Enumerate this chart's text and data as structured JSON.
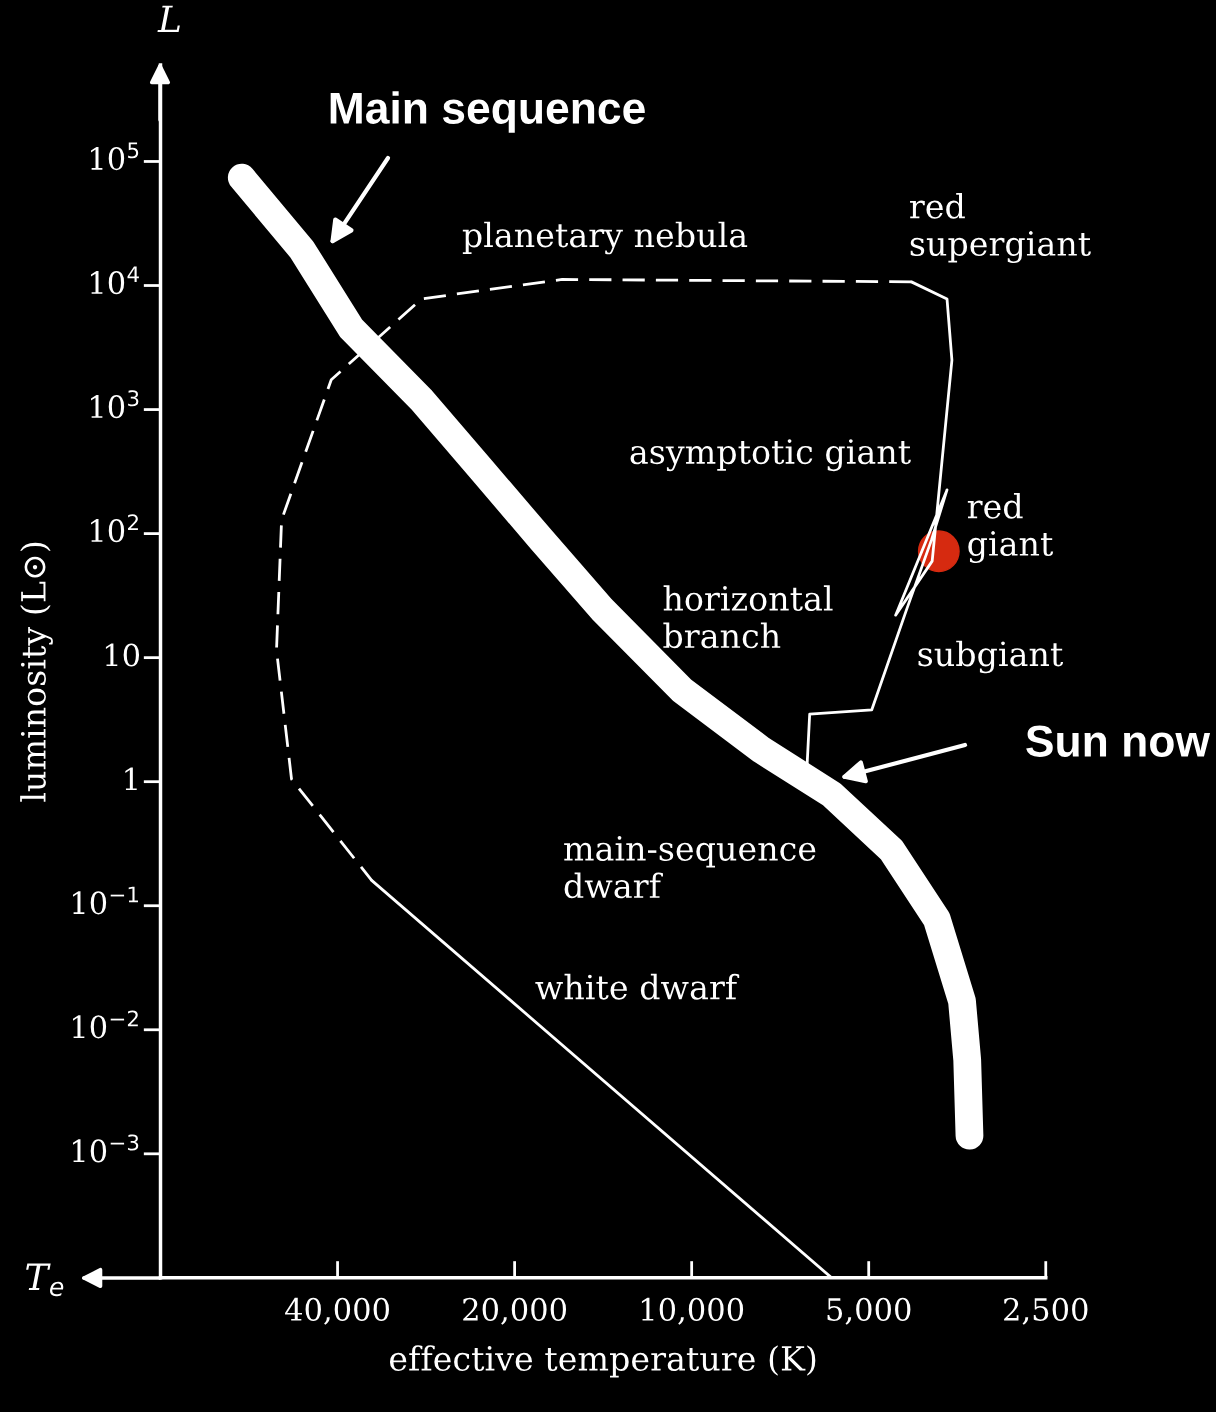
{
  "chart_data": {
    "type": "line",
    "xlabel": "effective temperature (K)",
    "ylabel": "luminosity (L⊙)",
    "log": "xy",
    "grid": false,
    "legend": false,
    "xlim": [
      80000,
      2500
    ],
    "ylim": [
      0.0001,
      600000
    ],
    "xticks": [
      {
        "value": 40000,
        "label": "40,000"
      },
      {
        "value": 20000,
        "label": "20,000"
      },
      {
        "value": 10000,
        "label": "10,000"
      },
      {
        "value": 5000,
        "label": "5,000"
      },
      {
        "value": 2500,
        "label": "2,500"
      }
    ],
    "yticks": [
      {
        "value": 100000,
        "label": "10$^{5}$"
      },
      {
        "value": 10000,
        "label": "10$^{4}$"
      },
      {
        "value": 1000,
        "label": "10$^{3}$"
      },
      {
        "value": 100,
        "label": "10$^{2}$"
      },
      10,
      1,
      {
        "value": 0.1,
        "label": "10$^{−1}$"
      },
      {
        "value": 0.01,
        "label": "10$^{−2}$"
      },
      {
        "value": 0.001,
        "label": "10$^{−3}$"
      }
    ],
    "series": [
      {
        "color": "#ffffff",
        "line_style": "solid",
        "x": [
          58200,
          46000,
          37900,
          28800,
          22800,
          18000,
          14200,
          10400,
          7600,
          5780,
          4570,
          3830,
          3470,
          3400,
          3370
        ],
        "values": [
          74000,
          19500,
          4500,
          1200,
          330,
          89,
          24.5,
          5.5,
          1.8,
          0.79,
          0.28,
          0.078,
          0.017,
          0.0057,
          0.0014
        ]
      },
      {
        "color": "#ffffff",
        "line_style": "solid",
        "x": [
          6370,
          6300,
          4940,
          4310,
          3910,
          3680,
          4500,
          3900,
          3610,
          3680,
          4230
        ],
        "values": [
          1.25,
          3.5,
          3.8,
          24.5,
          89,
          225,
          22,
          60,
          2500,
          7800,
          10700
        ]
      },
      {
        "color": "#ffffff",
        "line_style": "dashed",
        "x": [
          4230,
          16600,
          28800,
          41000,
          49800,
          50800,
          47900,
          35000
        ],
        "values": [
          10700,
          11200,
          7800,
          1740,
          129,
          11.5,
          1.05,
          0.16
        ]
      },
      {
        "color": "#ffffff",
        "line_style": "solid",
        "x": [
          35000,
          5780
        ],
        "values": [
          0.16,
          0.0001
        ]
      },
      {
        "type": "scatter",
        "color": "#d62a10",
        "marker": "circle",
        "x": [
          3800
        ],
        "values": [
          72
        ]
      }
    ],
    "annotations": [
      "L",
      "T$_{e}$",
      "Main sequence",
      "Sun now",
      "planetary nebula",
      "red\nsupergiant",
      "asymptotic giant",
      "red\ngiant",
      "horizontal\nbranch",
      "subgiant",
      "main-sequence\ndwarf",
      "white dwarf"
    ]
  }
}
